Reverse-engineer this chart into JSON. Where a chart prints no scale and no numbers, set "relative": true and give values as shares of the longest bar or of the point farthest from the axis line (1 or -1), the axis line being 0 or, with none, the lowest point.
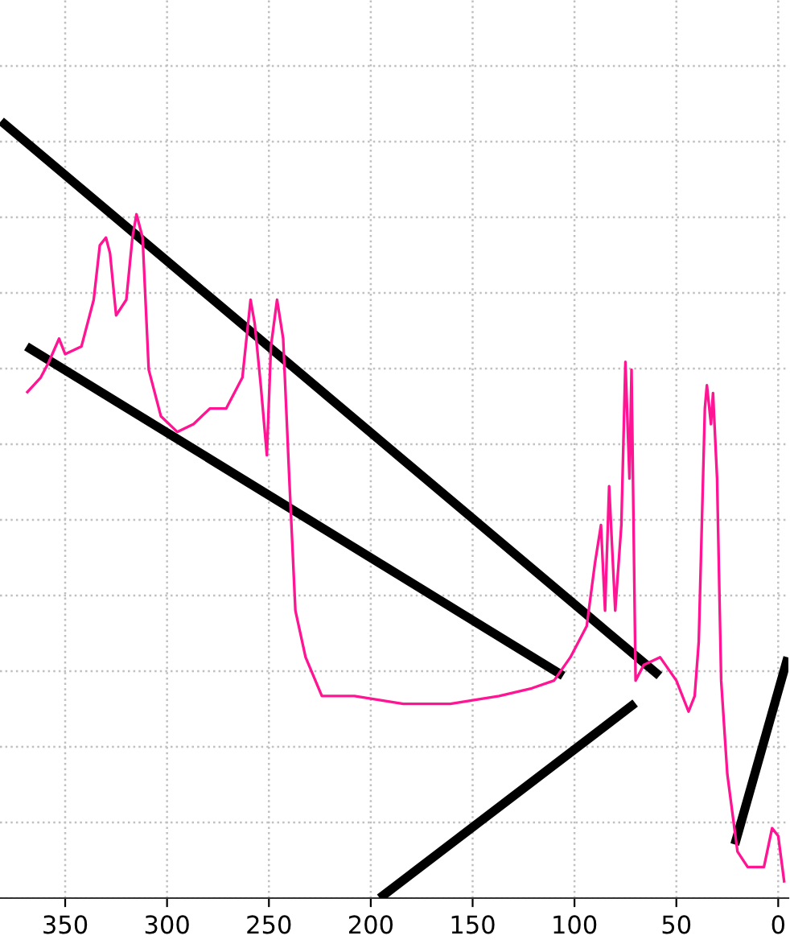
{
  "chart_data": {
    "type": "line",
    "relative": true,
    "grid": true,
    "marker": "none",
    "line_style": "solid",
    "xlim": [
      382,
      -5
    ],
    "xticks": [
      350,
      300,
      250,
      200,
      150,
      100,
      50,
      0
    ],
    "series": [
      {
        "color": "#000000",
        "x": [
          381.5,
          58.3
        ],
        "values": [
          1.0,
          0.286
        ]
      },
      {
        "color": "#000000",
        "x": [
          369,
          105.6
        ],
        "values": [
          0.71,
          0.286
        ]
      },
      {
        "color": "#000000",
        "x": [
          195.6,
          70.2
        ],
        "values": [
          0,
          0.251
        ]
      },
      {
        "color": "#000000",
        "x": [
          21.3,
          -4.7
        ],
        "values": [
          0.069,
          0.31
        ]
      },
      {
        "color": "#ff1493",
        "x": [
          369,
          362,
          358,
          353,
          350,
          342,
          336,
          333,
          330,
          328,
          325,
          320,
          317,
          315,
          312,
          309,
          303,
          295,
          287,
          279,
          271,
          263,
          259,
          257,
          254,
          251,
          249,
          246,
          243,
          240,
          237,
          232,
          224,
          208,
          184,
          161,
          137,
          121,
          110,
          102,
          94,
          90,
          87,
          85,
          83,
          80,
          77,
          75,
          73,
          72,
          70,
          66,
          58,
          50,
          44,
          41,
          39,
          36,
          35,
          33,
          32,
          30,
          28,
          25,
          20,
          15,
          7,
          3,
          0,
          -3
        ],
        "values": [
          0.65,
          0.67,
          0.69,
          0.72,
          0.7,
          0.71,
          0.77,
          0.84,
          0.85,
          0.83,
          0.75,
          0.77,
          0.85,
          0.88,
          0.85,
          0.68,
          0.62,
          0.6,
          0.61,
          0.63,
          0.63,
          0.67,
          0.77,
          0.74,
          0.66,
          0.57,
          0.71,
          0.77,
          0.72,
          0.54,
          0.37,
          0.31,
          0.26,
          0.26,
          0.25,
          0.25,
          0.26,
          0.27,
          0.28,
          0.31,
          0.35,
          0.43,
          0.48,
          0.37,
          0.53,
          0.37,
          0.48,
          0.69,
          0.54,
          0.68,
          0.28,
          0.3,
          0.31,
          0.28,
          0.24,
          0.26,
          0.33,
          0.63,
          0.66,
          0.61,
          0.65,
          0.54,
          0.28,
          0.16,
          0.06,
          0.04,
          0.04,
          0.09,
          0.08,
          0.02
        ]
      }
    ]
  }
}
